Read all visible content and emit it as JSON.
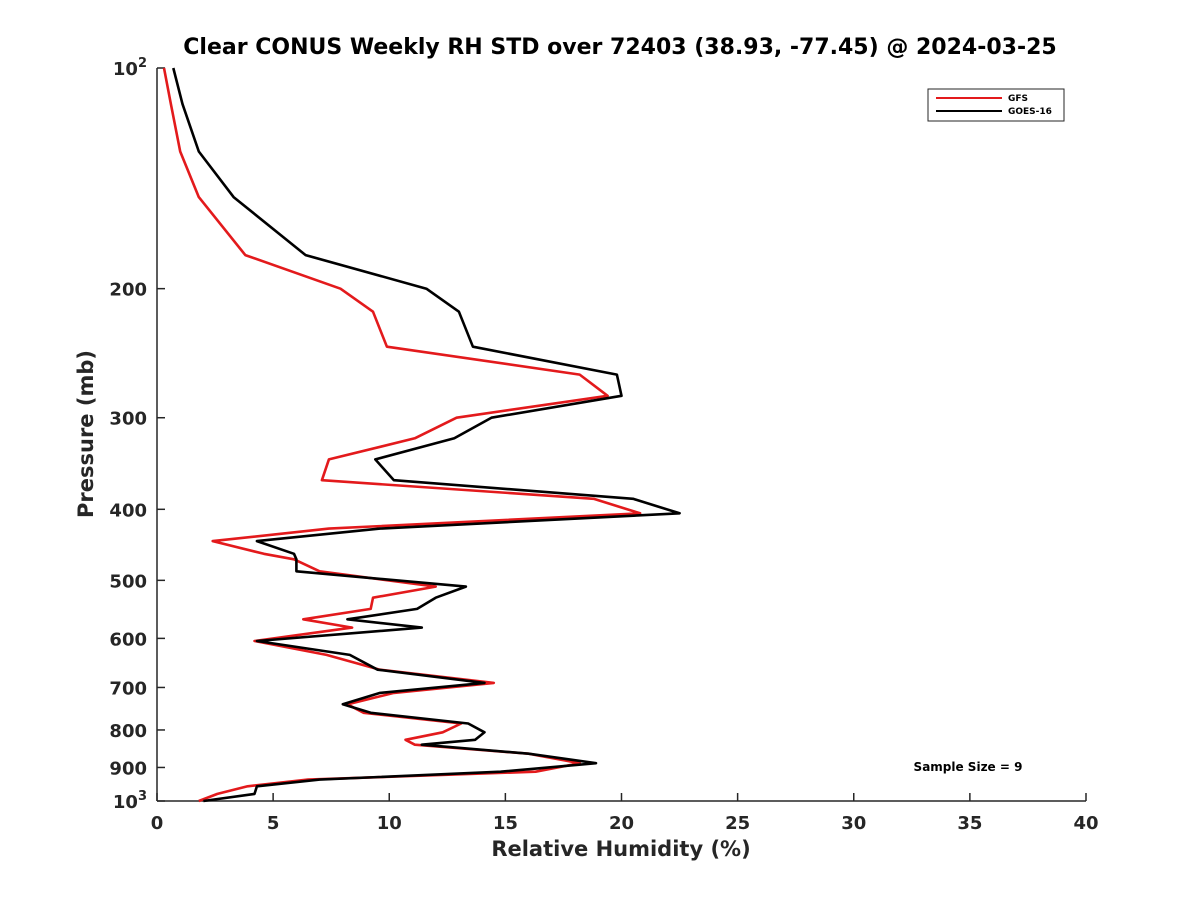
{
  "chart_data": {
    "type": "line",
    "title": "Clear CONUS Weekly RH STD over 72403 (38.93, -77.45) @ 2024-03-25",
    "xlabel": "Relative Humidity (%)",
    "ylabel": "Pressure (mb)",
    "xlim": [
      0,
      40
    ],
    "ylim": [
      100,
      1000
    ],
    "y_scale": "log",
    "y_reversed": true,
    "x_ticks": [
      "0",
      "5",
      "10",
      "15",
      "20",
      "25",
      "30",
      "35",
      "40"
    ],
    "y_ticks": [
      {
        "value": 100,
        "base": "10",
        "exp": "2"
      },
      {
        "value": 200,
        "label": "200"
      },
      {
        "value": 300,
        "label": "300"
      },
      {
        "value": 400,
        "label": "400"
      },
      {
        "value": 500,
        "label": "500"
      },
      {
        "value": 600,
        "label": "600"
      },
      {
        "value": 700,
        "label": "700"
      },
      {
        "value": 800,
        "label": "800"
      },
      {
        "value": 900,
        "label": "900"
      },
      {
        "value": 1000,
        "base": "10",
        "exp": "3"
      }
    ],
    "grid": false,
    "legend_position": "top-right",
    "annotation": "Sample Size = 9",
    "series": [
      {
        "name": "GFS",
        "color": "#e31a1c",
        "points": [
          [
            0.3,
            100
          ],
          [
            0.6,
            112
          ],
          [
            1.0,
            130
          ],
          [
            1.8,
            150
          ],
          [
            3.8,
            180
          ],
          [
            7.9,
            200
          ],
          [
            9.3,
            215
          ],
          [
            9.9,
            240
          ],
          [
            18.2,
            262
          ],
          [
            19.4,
            280
          ],
          [
            12.9,
            300
          ],
          [
            11.1,
            320
          ],
          [
            7.4,
            342
          ],
          [
            7.1,
            365
          ],
          [
            18.8,
            387
          ],
          [
            20.8,
            405
          ],
          [
            7.4,
            425
          ],
          [
            2.4,
            442
          ],
          [
            4.6,
            460
          ],
          [
            5.9,
            468
          ],
          [
            7.0,
            486
          ],
          [
            12.0,
            510
          ],
          [
            9.3,
            528
          ],
          [
            9.2,
            547
          ],
          [
            6.3,
            565
          ],
          [
            8.4,
            580
          ],
          [
            4.2,
            605
          ],
          [
            7.3,
            632
          ],
          [
            9.6,
            662
          ],
          [
            14.5,
            690
          ],
          [
            10.2,
            712
          ],
          [
            8.2,
            738
          ],
          [
            8.9,
            758
          ],
          [
            13.1,
            784
          ],
          [
            12.3,
            806
          ],
          [
            10.7,
            825
          ],
          [
            11.1,
            838
          ],
          [
            16.0,
            862
          ],
          [
            18.2,
            888
          ],
          [
            16.3,
            912
          ],
          [
            6.5,
            935
          ],
          [
            3.9,
            955
          ],
          [
            2.6,
            978
          ],
          [
            1.8,
            1000
          ]
        ]
      },
      {
        "name": "GOES-16",
        "color": "#000000",
        "points": [
          [
            0.7,
            100
          ],
          [
            1.1,
            112
          ],
          [
            1.8,
            130
          ],
          [
            3.3,
            150
          ],
          [
            6.4,
            180
          ],
          [
            11.6,
            200
          ],
          [
            13.0,
            215
          ],
          [
            13.6,
            240
          ],
          [
            19.8,
            262
          ],
          [
            20.0,
            280
          ],
          [
            14.4,
            300
          ],
          [
            12.8,
            320
          ],
          [
            9.4,
            342
          ],
          [
            10.2,
            365
          ],
          [
            20.5,
            387
          ],
          [
            22.5,
            405
          ],
          [
            9.6,
            425
          ],
          [
            4.3,
            442
          ],
          [
            5.9,
            460
          ],
          [
            6.0,
            468
          ],
          [
            6.0,
            486
          ],
          [
            13.3,
            510
          ],
          [
            12.0,
            528
          ],
          [
            11.2,
            547
          ],
          [
            8.2,
            565
          ],
          [
            11.4,
            580
          ],
          [
            4.3,
            605
          ],
          [
            8.3,
            632
          ],
          [
            9.5,
            662
          ],
          [
            14.1,
            690
          ],
          [
            9.6,
            712
          ],
          [
            8.0,
            738
          ],
          [
            9.2,
            758
          ],
          [
            13.4,
            784
          ],
          [
            14.1,
            806
          ],
          [
            13.7,
            825
          ],
          [
            11.4,
            838
          ],
          [
            16.0,
            862
          ],
          [
            18.9,
            888
          ],
          [
            14.8,
            912
          ],
          [
            7.0,
            935
          ],
          [
            4.3,
            955
          ],
          [
            4.2,
            978
          ],
          [
            2.0,
            1000
          ]
        ]
      }
    ]
  }
}
